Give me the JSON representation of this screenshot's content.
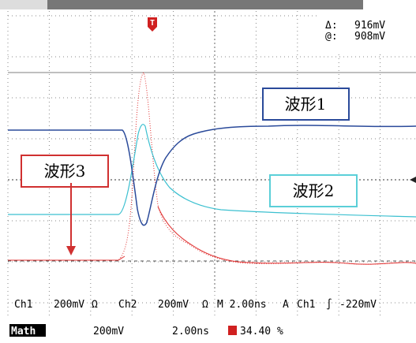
{
  "cursor": {
    "delta_label": "Δ:",
    "delta_value": "916mV",
    "at_label": "@:",
    "at_value": "908mV"
  },
  "annotations": {
    "wave1": "波形1",
    "wave2": "波形2",
    "wave3": "波形3"
  },
  "status": {
    "ch1": "Ch1",
    "ch1_scale": "200mV",
    "ch1_impedance": "Ω",
    "ch2": "Ch2",
    "ch2_scale": "200mV",
    "ch2_impedance": "Ω",
    "timebase": "M 2.00ns",
    "trigger_mode": "A",
    "trigger_source": "Ch1",
    "trigger_slope": "∫",
    "trigger_level": "-220mV",
    "math": "Math",
    "math_scale": "200mV",
    "math_timebase": "2.00ns",
    "trigger_marker": "T",
    "trigger_position": "34.40 %"
  }
}
